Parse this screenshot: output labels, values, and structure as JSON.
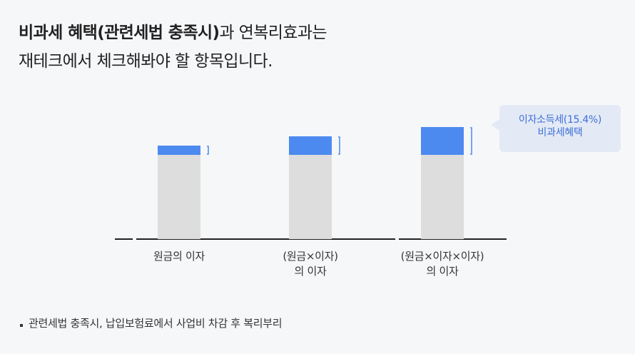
{
  "heading": {
    "line1_bold": "비과세 혜택(관련세법 충족시)",
    "line1_rest": "과 연복리효과는",
    "line2": "재테크에서 체크해봐야 할 항목입니다."
  },
  "chart_data": {
    "type": "bar",
    "stacked": true,
    "categories": [
      [
        "원금의 이자"
      ],
      [
        "(원금×이자)",
        "의 이자"
      ],
      [
        "(원금×이자×이자)",
        "의 이자"
      ]
    ],
    "series": [
      {
        "values": [
          118,
          118,
          118
        ],
        "color": "#dddddd"
      },
      {
        "values": [
          13,
          26,
          39
        ],
        "color": "#4d8af0"
      }
    ],
    "ylim": [
      0,
      170
    ],
    "annotation": {
      "lines": [
        "이자소득세(15.4%)",
        "비과세혜택"
      ],
      "color": "#3f6fd8",
      "background": "#e3eaf5"
    },
    "grid": false,
    "axis_color": "#222222"
  },
  "footnote": "관련세법 충족시, 납입보험료에서 사업비 차감 후 복리부리"
}
